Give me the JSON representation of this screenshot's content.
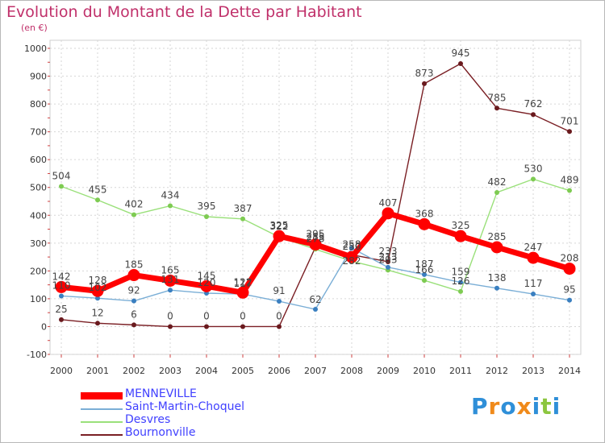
{
  "chart_data": {
    "type": "line",
    "title": "Evolution du Montant de la Dette par Habitant",
    "unit_label": "(en €)",
    "x": [
      "2000",
      "2001",
      "2002",
      "2003",
      "2004",
      "2005",
      "2006",
      "2007",
      "2008",
      "2009",
      "2010",
      "2011",
      "2012",
      "2013",
      "2014"
    ],
    "ylim": [
      -100,
      1000
    ],
    "yticks": [
      -100,
      0,
      100,
      200,
      300,
      400,
      500,
      600,
      700,
      800,
      900,
      1000
    ],
    "grid": true,
    "legend_position": "bottom-left",
    "series": [
      {
        "name": "Bournonville",
        "color": "#7a1f24",
        "marker": "#6a1a1e",
        "values": [
          25,
          12,
          6,
          0,
          0,
          0,
          0,
          285,
          258,
          233,
          873,
          945,
          785,
          762,
          701
        ]
      },
      {
        "name": "Desvres",
        "color": "#9ae07a",
        "marker": "#7ecb52",
        "values": [
          504,
          455,
          402,
          434,
          395,
          387,
          322,
          278,
          235,
          203,
          166,
          126,
          482,
          530,
          489
        ]
      },
      {
        "name": "Saint-Martin-Choquel",
        "color": "#7aaed6",
        "marker": "#3a7fc0",
        "values": [
          110,
          102,
          92,
          131,
          120,
          117,
          91,
          62,
          282,
          213,
          187,
          159,
          138,
          117,
          95
        ]
      },
      {
        "name": "MENNEVILLE",
        "color": "#ff0000",
        "marker": "#ff0000",
        "values": [
          142,
          128,
          185,
          165,
          145,
          122,
          325,
          295,
          250,
          407,
          368,
          325,
          285,
          247,
          208
        ]
      }
    ],
    "data_labels": [
      {
        "series": "Desvres",
        "index": 0,
        "text": "504"
      },
      {
        "series": "Desvres",
        "index": 1,
        "text": "455"
      },
      {
        "series": "Desvres",
        "index": 2,
        "text": "402"
      },
      {
        "series": "Desvres",
        "index": 3,
        "text": "434"
      },
      {
        "series": "Desvres",
        "index": 4,
        "text": "395"
      },
      {
        "series": "Desvres",
        "index": 5,
        "text": "387"
      },
      {
        "series": "Desvres",
        "index": 6,
        "text": "322"
      },
      {
        "series": "Desvres",
        "index": 7,
        "text": "278"
      },
      {
        "series": "Desvres",
        "index": 9,
        "text": "203"
      },
      {
        "series": "Desvres",
        "index": 10,
        "text": "166"
      },
      {
        "series": "Desvres",
        "index": 11,
        "text": "126"
      },
      {
        "series": "Desvres",
        "index": 12,
        "text": "482"
      },
      {
        "series": "Desvres",
        "index": 13,
        "text": "530"
      },
      {
        "series": "Desvres",
        "index": 14,
        "text": "489"
      },
      {
        "series": "Bournonville",
        "index": 0,
        "text": "25"
      },
      {
        "series": "Bournonville",
        "index": 1,
        "text": "12"
      },
      {
        "series": "Bournonville",
        "index": 2,
        "text": "6"
      },
      {
        "series": "Bournonville",
        "index": 3,
        "text": "0"
      },
      {
        "series": "Bournonville",
        "index": 4,
        "text": "0"
      },
      {
        "series": "Bournonville",
        "index": 5,
        "text": "0"
      },
      {
        "series": "Bournonville",
        "index": 6,
        "text": "0"
      },
      {
        "series": "Bournonville",
        "index": 7,
        "text": "285"
      },
      {
        "series": "Bournonville",
        "index": 8,
        "text": "258"
      },
      {
        "series": "Bournonville",
        "index": 9,
        "text": "233"
      },
      {
        "series": "Bournonville",
        "index": 10,
        "text": "873"
      },
      {
        "series": "Bournonville",
        "index": 11,
        "text": "945"
      },
      {
        "series": "Bournonville",
        "index": 12,
        "text": "785"
      },
      {
        "series": "Bournonville",
        "index": 13,
        "text": "762"
      },
      {
        "series": "Bournonville",
        "index": 14,
        "text": "701"
      },
      {
        "series": "Saint-Martin-Choquel",
        "index": 0,
        "text": "110"
      },
      {
        "series": "Saint-Martin-Choquel",
        "index": 1,
        "text": "102"
      },
      {
        "series": "Saint-Martin-Choquel",
        "index": 2,
        "text": "92"
      },
      {
        "series": "Saint-Martin-Choquel",
        "index": 3,
        "text": "131"
      },
      {
        "series": "Saint-Martin-Choquel",
        "index": 4,
        "text": "120"
      },
      {
        "series": "Saint-Martin-Choquel",
        "index": 5,
        "text": "117"
      },
      {
        "series": "Saint-Martin-Choquel",
        "index": 6,
        "text": "91"
      },
      {
        "series": "Saint-Martin-Choquel",
        "index": 7,
        "text": "62"
      },
      {
        "series": "Saint-Martin-Choquel",
        "index": 8,
        "text": "282"
      },
      {
        "series": "Saint-Martin-Choquel",
        "index": 9,
        "text": "213"
      },
      {
        "series": "Saint-Martin-Choquel",
        "index": 10,
        "text": "187"
      },
      {
        "series": "Saint-Martin-Choquel",
        "index": 11,
        "text": "159"
      },
      {
        "series": "Saint-Martin-Choquel",
        "index": 12,
        "text": "138"
      },
      {
        "series": "Saint-Martin-Choquel",
        "index": 13,
        "text": "117"
      },
      {
        "series": "Saint-Martin-Choquel",
        "index": 14,
        "text": "95"
      },
      {
        "series": "MENNEVILLE",
        "index": 0,
        "text": "142"
      },
      {
        "series": "MENNEVILLE",
        "index": 1,
        "text": "128"
      },
      {
        "series": "MENNEVILLE",
        "index": 2,
        "text": "185"
      },
      {
        "series": "MENNEVILLE",
        "index": 3,
        "text": "165"
      },
      {
        "series": "MENNEVILLE",
        "index": 4,
        "text": "145"
      },
      {
        "series": "MENNEVILLE",
        "index": 5,
        "text": "122"
      },
      {
        "series": "MENNEVILLE",
        "index": 6,
        "text": "325"
      },
      {
        "series": "MENNEVILLE",
        "index": 7,
        "text": "295"
      },
      {
        "series": "MENNEVILLE",
        "index": 8,
        "text": "250"
      },
      {
        "series": "MENNEVILLE",
        "index": 9,
        "text": "407"
      },
      {
        "series": "MENNEVILLE",
        "index": 10,
        "text": "368"
      },
      {
        "series": "MENNEVILLE",
        "index": 11,
        "text": "325"
      },
      {
        "series": "MENNEVILLE",
        "index": 12,
        "text": "285"
      },
      {
        "series": "MENNEVILLE",
        "index": 13,
        "text": "247"
      },
      {
        "series": "MENNEVILLE",
        "index": 14,
        "text": "208"
      }
    ],
    "legend": [
      {
        "name": "MENNEVILLE",
        "color": "#ff0000",
        "thick": true
      },
      {
        "name": "Saint-Martin-Choquel",
        "color": "#7aaed6",
        "thick": false
      },
      {
        "name": "Desvres",
        "color": "#9ae07a",
        "thick": false
      },
      {
        "name": "Bournonville",
        "color": "#7a1f24",
        "thick": false
      }
    ]
  },
  "logo": {
    "letters": [
      "P",
      "r",
      "o",
      "x",
      "i",
      "t",
      "i"
    ],
    "colors": [
      "#2f8fd8",
      "#f08a1a",
      "#2f8fd8",
      "#f08a1a",
      "#2f8fd8",
      "#8cc63f",
      "#2f8fd8"
    ]
  }
}
